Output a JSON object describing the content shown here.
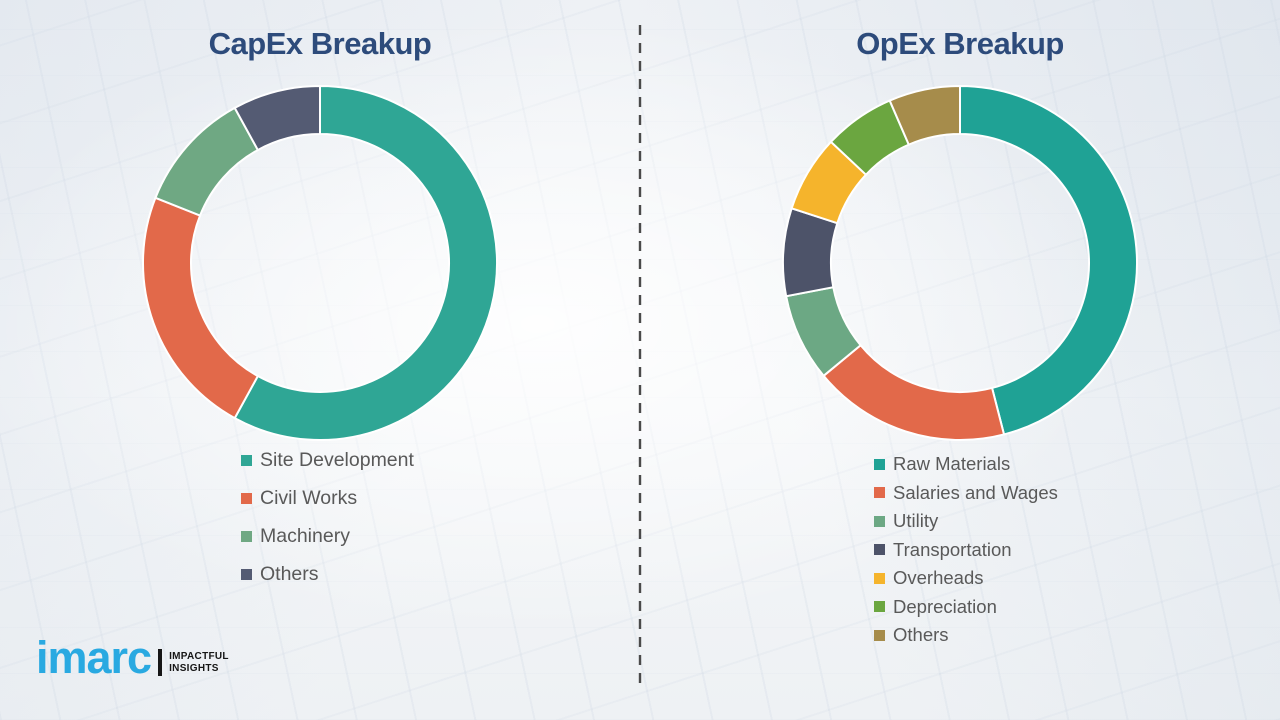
{
  "chart_data": [
    {
      "type": "pie",
      "variant": "donut",
      "title": "CapEx Breakup",
      "labels": [
        "Site Development",
        "Civil Works",
        "Machinery",
        "Others"
      ],
      "values": [
        58,
        23,
        11,
        8
      ],
      "colors": [
        "#2FA695",
        "#E2694A",
        "#6FA883",
        "#545B73"
      ],
      "start_angle_deg": 0,
      "direction": "clockwise",
      "legend_position": "below-left",
      "data_labels_shown": false
    },
    {
      "type": "pie",
      "variant": "donut",
      "title": "OpEx Breakup",
      "labels": [
        "Raw Materials",
        "Salaries and Wages",
        "Utility",
        "Transportation",
        "Overheads",
        "Depreciation",
        "Others"
      ],
      "values": [
        46,
        18,
        8,
        8,
        7,
        6.5,
        6.5
      ],
      "colors": [
        "#1FA295",
        "#E2694A",
        "#6CA884",
        "#4D5369",
        "#F5B42C",
        "#6BA640",
        "#A68C4B"
      ],
      "start_angle_deg": 0,
      "direction": "clockwise",
      "legend_position": "below-left",
      "data_labels_shown": false
    }
  ],
  "divider": {
    "style": "vertical-dashed",
    "color": "#4A4A4A"
  },
  "logo": {
    "brand": "imarc",
    "brand_color": "#29A9E1",
    "tagline": [
      "IMPACTFUL",
      "INSIGHTS"
    ]
  },
  "title_color": "#2D4B7B",
  "legend_text_color": "#595959"
}
